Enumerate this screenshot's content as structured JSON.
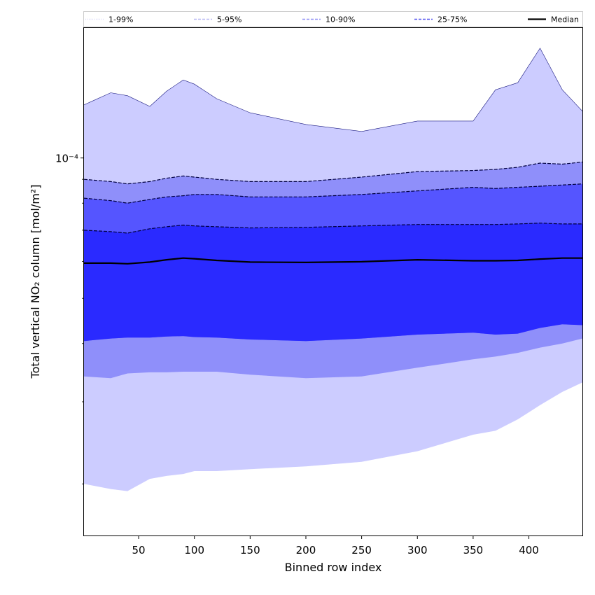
{
  "chart_data": {
    "type": "area",
    "xlabel": "Binned row index",
    "ylabel": "Total vertical NO₂ column [mol/m²]",
    "yscale": "log",
    "xlim": [
      1,
      448
    ],
    "ylim": [
      1.55e-05,
      0.00019
    ],
    "xticks": [
      50,
      100,
      150,
      200,
      250,
      300,
      350,
      400
    ],
    "yticks": [
      {
        "value": 0.0001,
        "label": "10⁻⁴"
      }
    ],
    "legend": {
      "placement": "top (above axes, single row)",
      "entries": [
        {
          "label": "1-99%",
          "color": "#dcdcfa",
          "style": "dotted"
        },
        {
          "label": "5-95%",
          "color": "#b8b8f2",
          "style": "dashed"
        },
        {
          "label": "10-90%",
          "color": "#8f8ff5",
          "style": "dashed"
        },
        {
          "label": "25-75%",
          "color": "#5454f0",
          "style": "dashed"
        },
        {
          "label": "Median",
          "color": "#000000",
          "style": "solid"
        }
      ]
    },
    "x": [
      1,
      25,
      40,
      60,
      75,
      90,
      100,
      120,
      150,
      200,
      250,
      300,
      350,
      370,
      390,
      410,
      430,
      448
    ],
    "bands": [
      {
        "name": "1-99%",
        "color": "#ccccff",
        "upper": [
          0.00013,
          0.000138,
          0.000136,
          0.000129,
          0.000139,
          0.000147,
          0.000144,
          0.000134,
          0.000125,
          0.000118,
          0.000114,
          0.00012,
          0.00012,
          0.00014,
          0.000145,
          0.000172,
          0.00014,
          0.000126
        ],
        "lower": [
          2e-05,
          1.95e-05,
          1.93e-05,
          2.05e-05,
          2.08e-05,
          2.1e-05,
          2.13e-05,
          2.13e-05,
          2.15e-05,
          2.18e-05,
          2.23e-05,
          2.35e-05,
          2.55e-05,
          2.6e-05,
          2.75e-05,
          2.95e-05,
          3.15e-05,
          3.3e-05
        ]
      },
      {
        "name": "5-95%",
        "color": "#8f8ffa",
        "upper": [
          9e-05,
          8.9e-05,
          8.8e-05,
          8.9e-05,
          9.05e-05,
          9.15e-05,
          9.1e-05,
          9e-05,
          8.9e-05,
          8.9e-05,
          9.1e-05,
          9.35e-05,
          9.4e-05,
          9.45e-05,
          9.55e-05,
          9.75e-05,
          9.7e-05,
          9.8e-05
        ],
        "lower": [
          3.4e-05,
          3.37e-05,
          3.45e-05,
          3.47e-05,
          3.47e-05,
          3.48e-05,
          3.48e-05,
          3.48e-05,
          3.43e-05,
          3.37e-05,
          3.4e-05,
          3.55e-05,
          3.7e-05,
          3.75e-05,
          3.82e-05,
          3.92e-05,
          4e-05,
          4.1e-05
        ]
      },
      {
        "name": "10-90%",
        "color": "#5555ff",
        "upper": [
          8.2e-05,
          8.1e-05,
          8e-05,
          8.15e-05,
          8.25e-05,
          8.3e-05,
          8.35e-05,
          8.35e-05,
          8.25e-05,
          8.25e-05,
          8.35e-05,
          8.5e-05,
          8.65e-05,
          8.6e-05,
          8.65e-05,
          8.7e-05,
          8.75e-05,
          8.8e-05
        ],
        "lower": [
          4.05e-05,
          4.1e-05,
          4.12e-05,
          4.12e-05,
          4.14e-05,
          4.15e-05,
          4.13e-05,
          4.12e-05,
          4.08e-05,
          4.05e-05,
          4.1e-05,
          4.18e-05,
          4.22e-05,
          4.18e-05,
          4.2e-05,
          4.32e-05,
          4.4e-05,
          4.38e-05
        ]
      },
      {
        "name": "25-75%",
        "color": "#2a2aff",
        "upper": [
          7e-05,
          6.95e-05,
          6.9e-05,
          7.05e-05,
          7.12e-05,
          7.18e-05,
          7.15e-05,
          7.12e-05,
          7.08e-05,
          7.1e-05,
          7.15e-05,
          7.2e-05,
          7.2e-05,
          7.2e-05,
          7.22e-05,
          7.25e-05,
          7.22e-05,
          7.22e-05
        ],
        "lower": [
          4.05e-05,
          4.1e-05,
          4.12e-05,
          4.12e-05,
          4.14e-05,
          4.15e-05,
          4.13e-05,
          4.12e-05,
          4.08e-05,
          4.05e-05,
          4.1e-05,
          4.18e-05,
          4.22e-05,
          4.18e-05,
          4.2e-05,
          4.32e-05,
          4.4e-05,
          4.38e-05
        ]
      }
    ],
    "median": [
      5.95e-05,
      5.95e-05,
      5.93e-05,
      5.98e-05,
      6.05e-05,
      6.1e-05,
      6.08e-05,
      6.03e-05,
      5.98e-05,
      5.97e-05,
      5.99e-05,
      6.05e-05,
      6.02e-05,
      6.02e-05,
      6.03e-05,
      6.07e-05,
      6.1e-05,
      6.1e-05
    ],
    "grid": false
  }
}
